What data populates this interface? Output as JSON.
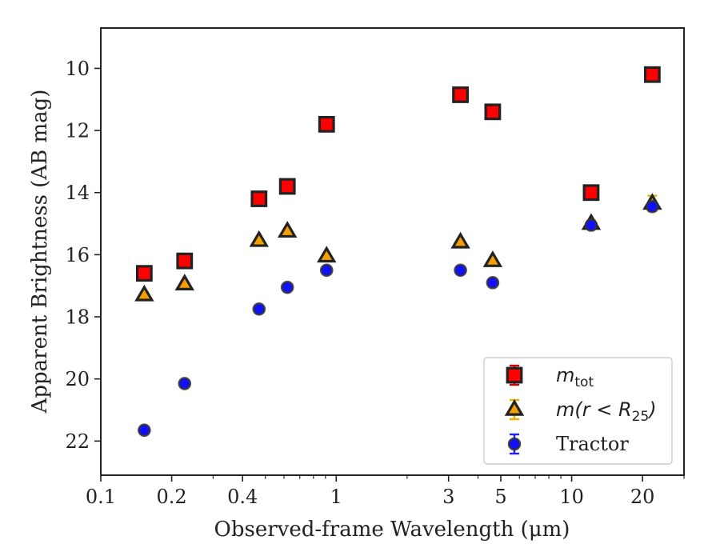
{
  "chart_data": {
    "type": "scatter",
    "xlabel": "Observed-frame Wavelength (μm)",
    "ylabel": "Apparent Brightness (AB mag)",
    "xscale": "log",
    "xlim": [
      0.1,
      30
    ],
    "ylim": [
      23.1,
      8.7
    ],
    "y_inverted": true,
    "x_ticks": [
      0.1,
      0.2,
      0.4,
      1,
      3,
      5,
      10,
      20
    ],
    "x_tick_labels": [
      "0.1",
      "0.2",
      "0.4",
      "1",
      "3",
      "5",
      "10",
      "20"
    ],
    "y_ticks": [
      10,
      12,
      14,
      16,
      18,
      20,
      22
    ],
    "y_tick_labels": [
      "10",
      "12",
      "14",
      "16",
      "18",
      "20",
      "22"
    ],
    "grid": false,
    "legend_position": "bottom-right",
    "series": [
      {
        "name": "m_tot",
        "legend_main": "m",
        "legend_sub": "tot",
        "legend_tail": "",
        "marker": "square",
        "color": "#ff0000",
        "edge_color": "#222222",
        "errbar_color": "#cc0000",
        "x": [
          0.153,
          0.227,
          0.47,
          0.62,
          0.91,
          3.37,
          4.62,
          12.1,
          22.0
        ],
        "y": [
          16.6,
          16.2,
          14.2,
          13.8,
          11.8,
          10.85,
          11.4,
          14.0,
          10.2
        ],
        "yerr": [
          0.05,
          0.05,
          0.05,
          0.05,
          0.05,
          0.05,
          0.05,
          0.05,
          0.05
        ]
      },
      {
        "name": "m(r < R_25)",
        "legend_main": "m(r < R",
        "legend_sub": "25",
        "legend_tail": ")",
        "marker": "triangle",
        "color": "#f5a000",
        "edge_color": "#222222",
        "errbar_color": "#f0b000",
        "x": [
          0.153,
          0.227,
          0.47,
          0.62,
          0.91,
          3.37,
          4.62,
          12.1,
          22.0
        ],
        "y": [
          17.3,
          16.95,
          15.55,
          15.25,
          16.05,
          15.6,
          16.2,
          15.0,
          14.35
        ],
        "yerr": [
          0.05,
          0.05,
          0.05,
          0.05,
          0.05,
          0.05,
          0.05,
          0.1,
          0.25
        ]
      },
      {
        "name": "Tractor",
        "legend_main": "Tractor",
        "legend_sub": "",
        "legend_tail": "",
        "marker": "circle",
        "color": "#1010ff",
        "edge_color": "#333333",
        "errbar_color": "#2020ff",
        "x": [
          0.153,
          0.227,
          0.47,
          0.62,
          0.91,
          3.37,
          4.62,
          12.1,
          22.0
        ],
        "y": [
          21.65,
          20.15,
          17.75,
          17.05,
          16.5,
          16.5,
          16.9,
          15.05,
          14.45
        ],
        "yerr": [
          0.05,
          0.05,
          0.05,
          0.05,
          0.05,
          0.05,
          0.05,
          0.05,
          0.1
        ]
      }
    ]
  }
}
